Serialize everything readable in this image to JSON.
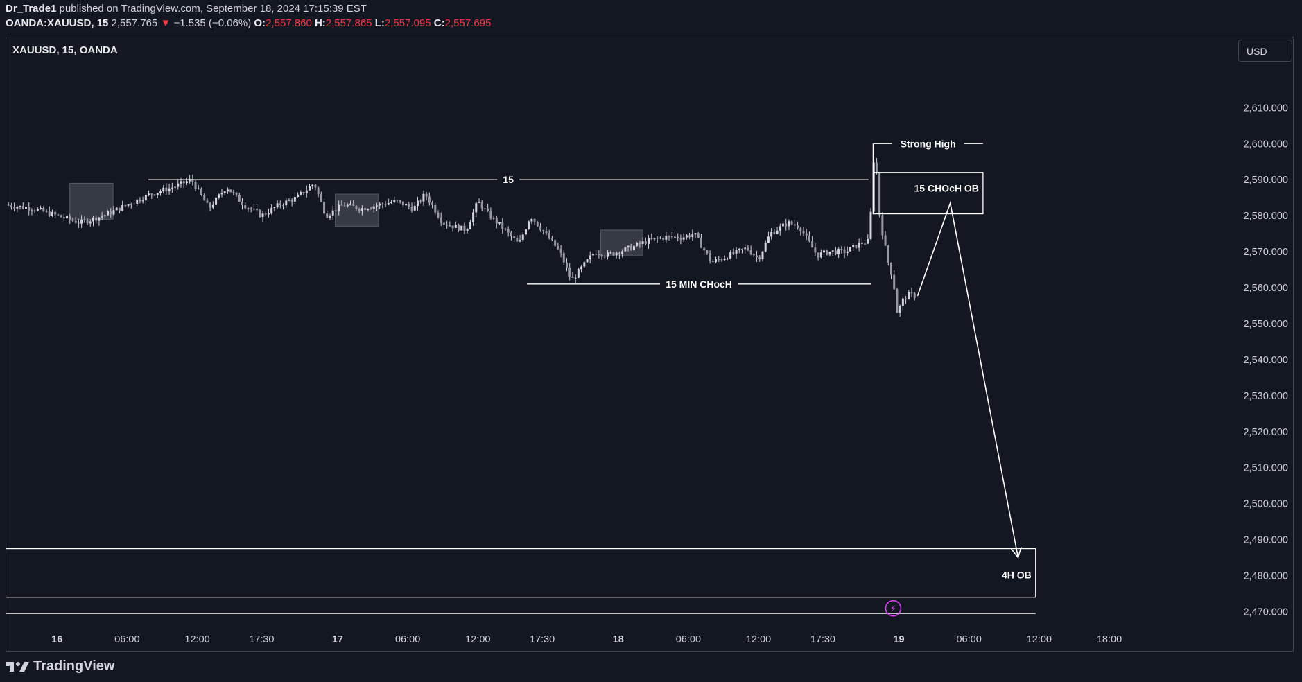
{
  "header": {
    "publisher": "Dr_Trade1",
    "published_text": "published on TradingView.com, September 18, 2024 17:15:39 EST",
    "symbol_full": "OANDA:XAUUSD, 15",
    "last_price": "2,557.765",
    "change_arrow": "▼",
    "change": "−1.535 (−0.06%)",
    "o_label": "O:",
    "o_value": "2,557.860",
    "h_label": "H:",
    "h_value": "2,557.865",
    "l_label": "L:",
    "l_value": "2,557.095",
    "c_label": "C:",
    "c_value": "2,557.695"
  },
  "chart_title": "XAUUSD, 15, OANDA",
  "currency_button": "USD",
  "footer_brand": "TradingView",
  "colors": {
    "background": "#131722",
    "candles": "#d1d4dc",
    "annotation": "#ffffff",
    "down": "#f23645",
    "shade": "#787b86",
    "event_marker": "#e040fb"
  },
  "chart_data": {
    "type": "candlestick",
    "timeframe": "15",
    "ylim": [
      2462,
      2622
    ],
    "y_ticks": [
      "2,470.000",
      "2,480.000",
      "2,490.000",
      "2,500.000",
      "2,510.000",
      "2,520.000",
      "2,530.000",
      "2,540.000",
      "2,550.000",
      "2,560.000",
      "2,570.000",
      "2,580.000",
      "2,590.000",
      "2,600.000",
      "2,610.000"
    ],
    "y_tick_values": [
      2470,
      2480,
      2490,
      2500,
      2510,
      2520,
      2530,
      2540,
      2550,
      2560,
      2570,
      2580,
      2590,
      2600,
      2610
    ],
    "x_ticks": [
      "16",
      "06:00",
      "12:00",
      "17:30",
      "17",
      "06:00",
      "12:00",
      "17:30",
      "18",
      "06:00",
      "12:00",
      "17:30",
      "19",
      "06:00",
      "12:00",
      "18:00"
    ],
    "x_tick_hours": [
      0,
      6,
      12,
      17.5,
      24,
      30,
      36,
      41.5,
      48,
      54,
      60,
      65.5,
      72,
      78,
      84,
      90
    ],
    "x_range_hours": [
      -4.4,
      98.3
    ],
    "price_path": [
      [
        -4.4,
        2583
      ],
      [
        -2,
        2582
      ],
      [
        0,
        2580
      ],
      [
        2,
        2578
      ],
      [
        4,
        2580
      ],
      [
        6,
        2583
      ],
      [
        8,
        2586
      ],
      [
        10,
        2588
      ],
      [
        11.5,
        2590
      ],
      [
        13,
        2582
      ],
      [
        14.5,
        2588
      ],
      [
        16,
        2583
      ],
      [
        17.5,
        2580
      ],
      [
        19,
        2583
      ],
      [
        20.5,
        2585
      ],
      [
        22,
        2589
      ],
      [
        23,
        2580
      ],
      [
        24.5,
        2583
      ],
      [
        26,
        2582
      ],
      [
        27.5,
        2583
      ],
      [
        29,
        2584
      ],
      [
        30.5,
        2582
      ],
      [
        31.5,
        2586
      ],
      [
        33,
        2578
      ],
      [
        35,
        2576
      ],
      [
        36,
        2584
      ],
      [
        37,
        2580
      ],
      [
        38,
        2577
      ],
      [
        39.5,
        2572
      ],
      [
        40.5,
        2580
      ],
      [
        42,
        2574
      ],
      [
        43,
        2570
      ],
      [
        44,
        2562
      ],
      [
        45,
        2566
      ],
      [
        46,
        2570
      ],
      [
        47,
        2569
      ],
      [
        49,
        2571
      ],
      [
        50.5,
        2573
      ],
      [
        52,
        2574
      ],
      [
        53.5,
        2574
      ],
      [
        54.5,
        2575
      ],
      [
        56,
        2567
      ],
      [
        57.5,
        2569
      ],
      [
        59,
        2571
      ],
      [
        60,
        2568
      ],
      [
        61,
        2575
      ],
      [
        62.5,
        2578
      ],
      [
        63.5,
        2577
      ],
      [
        65,
        2569
      ],
      [
        66,
        2570
      ],
      [
        67.5,
        2570
      ],
      [
        68.5,
        2572
      ],
      [
        69.5,
        2573
      ],
      [
        69.8,
        2596
      ],
      [
        70.1,
        2592
      ],
      [
        70.4,
        2578
      ],
      [
        70.7,
        2574
      ],
      [
        71,
        2568
      ],
      [
        71.3,
        2565
      ],
      [
        71.6,
        2560
      ],
      [
        71.9,
        2552
      ],
      [
        72.2,
        2556
      ],
      [
        72.8,
        2558
      ],
      [
        73.4,
        2557.7
      ]
    ],
    "shaded_boxes": [
      {
        "x1": 1.1,
        "x2": 4.8,
        "y1": 2579,
        "y2": 2589
      },
      {
        "x1": 23.8,
        "x2": 27.5,
        "y1": 2577,
        "y2": 2586
      },
      {
        "x1": 46.5,
        "x2": 50.1,
        "y1": 2569,
        "y2": 2576
      }
    ],
    "levels": [
      {
        "label": "15",
        "price": 2590,
        "x1": 7.8,
        "x2": 69.4
      },
      {
        "label": "15 MIN CHocH",
        "price": 2561,
        "x1": 40.2,
        "x2": 69.6
      },
      {
        "label": "Strong High",
        "price": 2600,
        "x1": 69.8,
        "x2": 79.2
      }
    ],
    "zones": [
      {
        "label": "15 CHOcH OB",
        "x1": 69.8,
        "x2": 79.2,
        "y1": 2580.5,
        "y2": 2592
      },
      {
        "label": "4H OB",
        "x1": -4.4,
        "x2": 83.7,
        "y1": 2474,
        "y2": 2487.5
      }
    ],
    "extra_line_price": 2469.5,
    "projection_path": [
      [
        73.6,
        2557.7
      ],
      [
        76.4,
        2583.5
      ],
      [
        82.2,
        2485
      ]
    ]
  }
}
